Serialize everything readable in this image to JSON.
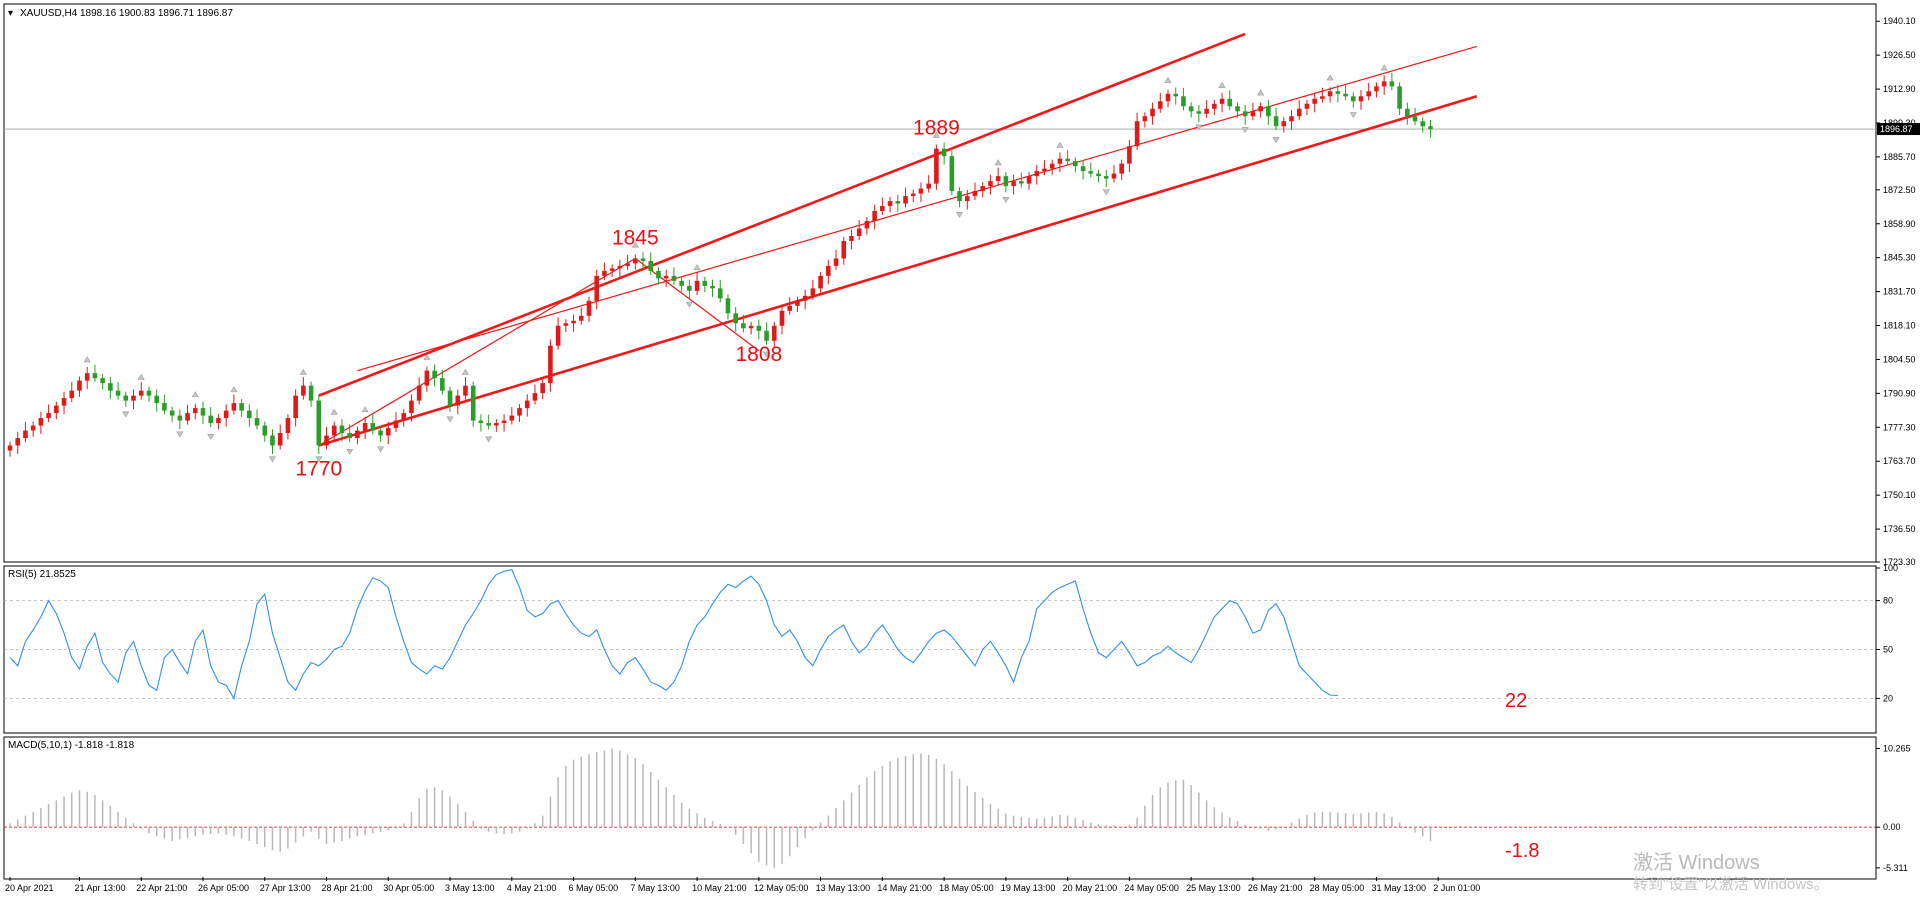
{
  "watermark": {
    "line1": "激活 Windows",
    "line2": "转到\"设置\"以激活 Windows。"
  },
  "chart_data": [
    {
      "type": "candlestick",
      "title": "XAUUSD,H4",
      "ohlc_text": "1898.16 1900.83 1896.71 1896.87",
      "current_price": 1896.87,
      "current_price_label": "1896.87",
      "ylim": [
        1723.3,
        1947.0
      ],
      "y_ticks": [
        "1940.10",
        "1926.50",
        "1912.90",
        "1899.30",
        "1885.70",
        "1872.50",
        "1858.90",
        "1845.30",
        "1831.70",
        "1818.10",
        "1804.50",
        "1790.90",
        "1777.30",
        "1763.70",
        "1750.10",
        "1736.50",
        "1723.30"
      ],
      "y_tick_values": [
        1940.1,
        1926.5,
        1912.9,
        1899.3,
        1885.7,
        1872.5,
        1858.9,
        1845.3,
        1831.7,
        1818.1,
        1804.5,
        1790.9,
        1777.3,
        1763.7,
        1750.1,
        1736.5,
        1723.3
      ],
      "x_labels": [
        {
          "text": "20 Apr 2021",
          "bar": 0
        },
        {
          "text": "21 Apr 13:00",
          "bar": 9
        },
        {
          "text": "22 Apr 21:00",
          "bar": 17
        },
        {
          "text": "26 Apr 05:00",
          "bar": 25
        },
        {
          "text": "27 Apr 13:00",
          "bar": 33
        },
        {
          "text": "28 Apr 21:00",
          "bar": 41
        },
        {
          "text": "30 Apr 05:00",
          "bar": 49
        },
        {
          "text": "3 May 13:00",
          "bar": 57
        },
        {
          "text": "4 May 21:00",
          "bar": 65
        },
        {
          "text": "6 May 05:00",
          "bar": 73
        },
        {
          "text": "7 May 13:00",
          "bar": 81
        },
        {
          "text": "10 May 21:00",
          "bar": 89
        },
        {
          "text": "12 May 05:00",
          "bar": 97
        },
        {
          "text": "13 May 13:00",
          "bar": 105
        },
        {
          "text": "14 May 21:00",
          "bar": 113
        },
        {
          "text": "18 May 05:00",
          "bar": 121
        },
        {
          "text": "19 May 13:00",
          "bar": 129
        },
        {
          "text": "20 May 21:00",
          "bar": 137
        },
        {
          "text": "24 May 05:00",
          "bar": 145
        },
        {
          "text": "25 May 13:00",
          "bar": 153
        },
        {
          "text": "26 May 21:00",
          "bar": 161
        },
        {
          "text": "28 May 05:00",
          "bar": 169
        },
        {
          "text": "31 May 13:00",
          "bar": 177
        },
        {
          "text": "2 Jun 01:00",
          "bar": 185
        }
      ],
      "closes": [
        1770,
        1773,
        1776,
        1778,
        1781,
        1783,
        1786,
        1789,
        1792,
        1796,
        1799,
        1797,
        1795,
        1792,
        1790,
        1788,
        1790,
        1792,
        1790,
        1787,
        1784,
        1782,
        1780,
        1783,
        1785,
        1782,
        1779,
        1781,
        1784,
        1787,
        1784,
        1781,
        1778,
        1774,
        1770,
        1775,
        1781,
        1790,
        1794,
        1788,
        1770,
        1774,
        1778,
        1775,
        1773,
        1776,
        1779,
        1776,
        1774,
        1777,
        1780,
        1783,
        1788,
        1794,
        1800,
        1797,
        1792,
        1786,
        1790,
        1794,
        1780,
        1779,
        1778,
        1779,
        1780,
        1782,
        1785,
        1788,
        1791,
        1795,
        1810,
        1818,
        1819,
        1820,
        1822,
        1828,
        1838,
        1840,
        1841,
        1842,
        1843,
        1845,
        1844,
        1840,
        1837,
        1838,
        1836,
        1834,
        1832,
        1836,
        1834,
        1833,
        1829,
        1823,
        1819,
        1817,
        1818,
        1816,
        1812,
        1818,
        1824,
        1826,
        1828,
        1830,
        1833,
        1838,
        1842,
        1845,
        1852,
        1854,
        1857,
        1860,
        1864,
        1866,
        1868,
        1867,
        1870,
        1871,
        1873,
        1875,
        1889,
        1886,
        1872,
        1868,
        1870,
        1872,
        1874,
        1876,
        1878,
        1874,
        1876,
        1875,
        1878,
        1880,
        1881,
        1883,
        1885,
        1884,
        1882,
        1880,
        1879,
        1878,
        1877,
        1879,
        1883,
        1890,
        1900,
        1902,
        1905,
        1908,
        1911,
        1910,
        1906,
        1904,
        1903,
        1905,
        1907,
        1909,
        1906,
        1904,
        1902,
        1904,
        1906,
        1902,
        1898,
        1900,
        1902,
        1905,
        1907,
        1909,
        1910,
        1912,
        1911,
        1910,
        1908,
        1910,
        1912,
        1914,
        1916,
        1914,
        1905,
        1902,
        1900,
        1898,
        1896.87
      ],
      "markers": [
        {
          "bar": 40,
          "label": "1770"
        },
        {
          "bar": 81,
          "label": "1845"
        },
        {
          "bar": 97,
          "label": "1808"
        },
        {
          "bar": 120,
          "label": "1889"
        }
      ],
      "channels": [
        {
          "points": [
            [
              40,
              1790
            ],
            [
              160,
              1935
            ]
          ],
          "width": "thick"
        },
        {
          "points": [
            [
              40,
              1770
            ],
            [
              190,
              1910
            ]
          ],
          "width": "thick"
        },
        {
          "points": [
            [
              45,
              1800
            ],
            [
              190,
              1930
            ]
          ],
          "width": "thin"
        }
      ],
      "zigzag": [
        [
          40,
          1770
        ],
        [
          81,
          1845
        ],
        [
          97,
          1808
        ]
      ]
    },
    {
      "type": "line",
      "title": "RSI(5) 21.8525",
      "ylim": [
        0,
        100
      ],
      "y_ticks": [
        "100",
        "80",
        "50",
        "20"
      ],
      "y_tick_values": [
        100,
        80,
        50,
        20
      ],
      "levels": [
        80,
        50,
        20
      ],
      "last_label": "22",
      "values": [
        45,
        40,
        55,
        62,
        70,
        80,
        72,
        60,
        45,
        38,
        52,
        60,
        42,
        35,
        30,
        48,
        55,
        40,
        28,
        25,
        45,
        50,
        42,
        35,
        55,
        62,
        40,
        30,
        28,
        20,
        40,
        55,
        78,
        84,
        60,
        45,
        30,
        25,
        35,
        42,
        40,
        44,
        50,
        52,
        60,
        75,
        86,
        94,
        92,
        88,
        70,
        55,
        42,
        38,
        35,
        40,
        38,
        45,
        55,
        65,
        72,
        80,
        90,
        96,
        98,
        99,
        88,
        74,
        70,
        72,
        78,
        80,
        72,
        65,
        60,
        58,
        62,
        50,
        40,
        35,
        42,
        45,
        38,
        30,
        28,
        25,
        30,
        40,
        55,
        65,
        70,
        78,
        85,
        90,
        88,
        92,
        95,
        90,
        80,
        65,
        58,
        62,
        55,
        45,
        40,
        50,
        58,
        62,
        65,
        55,
        48,
        52,
        60,
        65,
        58,
        50,
        45,
        42,
        48,
        55,
        60,
        62,
        58,
        52,
        46,
        40,
        50,
        55,
        48,
        40,
        30,
        45,
        55,
        75,
        80,
        85,
        88,
        90,
        92,
        75,
        60,
        48,
        45,
        50,
        55,
        48,
        40,
        42,
        46,
        48,
        52,
        48,
        45,
        42,
        50,
        60,
        70,
        75,
        80,
        78,
        70,
        60,
        62,
        74,
        78,
        70,
        55,
        40,
        35,
        30,
        25,
        22,
        21.85
      ]
    },
    {
      "type": "bar",
      "title": "MACD(5,10,1) -1.818 -1.818",
      "ylim": [
        -6.5,
        11.5
      ],
      "y_ticks": [
        "10.265",
        "0.00",
        "-5.311"
      ],
      "y_tick_values": [
        10.265,
        0.0,
        -5.311
      ],
      "zero_line": true,
      "last_label": "-1.8",
      "values": [
        0.5,
        1.0,
        1.5,
        2.0,
        2.5,
        3.0,
        3.5,
        4.0,
        4.5,
        4.8,
        4.6,
        4.2,
        3.5,
        2.8,
        2.0,
        1.2,
        0.5,
        -0.2,
        -0.8,
        -1.2,
        -1.5,
        -1.8,
        -1.6,
        -1.4,
        -1.2,
        -1.0,
        -0.9,
        -0.8,
        -1.0,
        -1.2,
        -1.5,
        -1.8,
        -2.2,
        -2.6,
        -3.0,
        -3.2,
        -2.8,
        -2.0,
        -1.2,
        -0.6,
        -1.5,
        -2.2,
        -2.0,
        -1.8,
        -1.5,
        -1.2,
        -1.0,
        -0.8,
        -0.6,
        -0.4,
        -0.2,
        0.5,
        2.0,
        3.8,
        5.0,
        5.2,
        4.8,
        4.0,
        3.0,
        2.0,
        0.8,
        -0.2,
        -0.6,
        -0.8,
        -0.9,
        -0.8,
        -0.6,
        -0.2,
        0.5,
        1.5,
        4.0,
        6.5,
        8.0,
        8.8,
        9.2,
        9.5,
        9.8,
        10.0,
        10.265,
        10.0,
        9.5,
        9.0,
        8.2,
        7.2,
        6.2,
        5.2,
        4.2,
        3.2,
        2.4,
        1.8,
        1.2,
        0.8,
        0.4,
        0.0,
        -1.0,
        -2.2,
        -3.4,
        -4.5,
        -5.0,
        -5.311,
        -4.8,
        -3.8,
        -2.6,
        -1.4,
        -0.4,
        0.6,
        1.5,
        2.5,
        3.5,
        4.5,
        5.5,
        6.5,
        7.3,
        8.0,
        8.6,
        9.0,
        9.3,
        9.5,
        9.6,
        9.4,
        8.9,
        8.2,
        7.3,
        6.3,
        5.4,
        4.6,
        3.8,
        3.0,
        2.4,
        1.8,
        1.5,
        1.3,
        1.2,
        1.1,
        1.2,
        1.4,
        1.6,
        1.5,
        1.2,
        0.9,
        0.6,
        0.4,
        0.3,
        0.2,
        0.1,
        0.3,
        1.2,
        2.8,
        4.2,
        5.2,
        5.8,
        6.1,
        6.2,
        5.5,
        4.5,
        3.5,
        2.6,
        1.9,
        1.3,
        0.8,
        0.3,
        0.0,
        -0.2,
        -0.5,
        -0.3,
        0.1,
        0.6,
        1.1,
        1.6,
        1.9,
        2.0,
        2.0,
        1.9,
        1.8,
        1.7,
        1.8,
        1.9,
        2.0,
        1.8,
        1.3,
        0.6,
        0.0,
        -0.7,
        -1.2,
        -1.818
      ]
    }
  ]
}
